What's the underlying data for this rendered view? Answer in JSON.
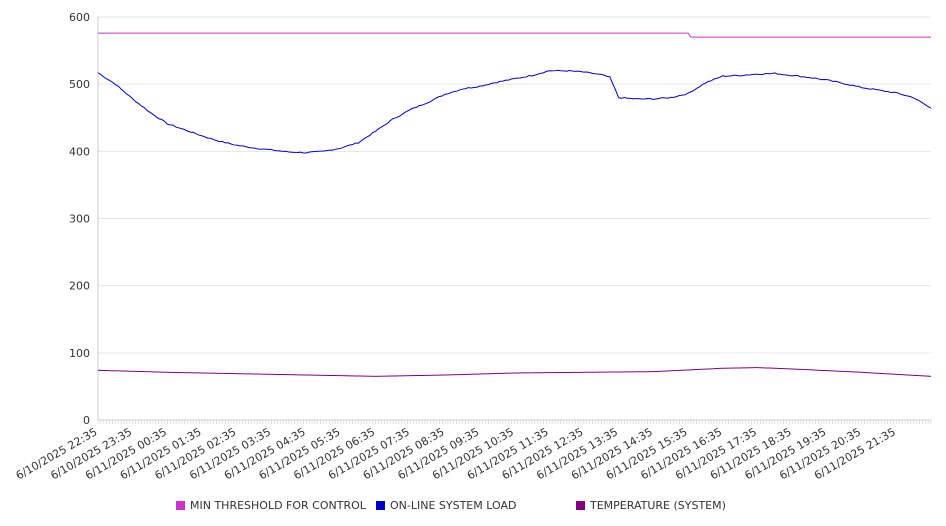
{
  "chart_data": {
    "type": "line",
    "title": "",
    "xlabel": "",
    "ylabel": "",
    "ylim": [
      0,
      600
    ],
    "yticks": [
      0,
      100,
      200,
      300,
      400,
      500,
      600
    ],
    "xlim": [
      "6/10/2025 22:35",
      "6/11/2025 22:35"
    ],
    "xticks": [
      "6/10/2025 22:35",
      "6/10/2025 23:35",
      "6/11/2025 00:35",
      "6/11/2025 01:35",
      "6/11/2025 02:35",
      "6/11/2025 03:35",
      "6/11/2025 04:35",
      "6/11/2025 05:35",
      "6/11/2025 06:35",
      "6/11/2025 07:35",
      "6/11/2025 08:35",
      "6/11/2025 09:35",
      "6/11/2025 10:35",
      "6/11/2025 11:35",
      "6/11/2025 12:35",
      "6/11/2025 13:35",
      "6/11/2025 14:35",
      "6/11/2025 15:35",
      "6/11/2025 16:35",
      "6/11/2025 17:35",
      "6/11/2025 18:35",
      "6/11/2025 19:35",
      "6/11/2025 20:35",
      "6/11/2025 21:35"
    ],
    "grid": "horizontal",
    "legend_position": "bottom",
    "series": [
      {
        "name": "MIN THRESHOLD FOR CONTROL",
        "color": "#cc33cc",
        "x": [
          "6/10/2025 22:35",
          "6/11/2025 15:35",
          "6/11/2025 15:40",
          "6/11/2025 22:35"
        ],
        "values": [
          576,
          576,
          570,
          570
        ]
      },
      {
        "name": "ON-LINE SYSTEM LOAD",
        "color": "#0000cc",
        "x": [
          "6/10/2025 22:35",
          "6/10/2025 23:05",
          "6/10/2025 23:35",
          "6/11/2025 00:05",
          "6/11/2025 00:35",
          "6/11/2025 01:05",
          "6/11/2025 01:35",
          "6/11/2025 02:05",
          "6/11/2025 02:35",
          "6/11/2025 03:05",
          "6/11/2025 03:35",
          "6/11/2025 04:05",
          "6/11/2025 04:35",
          "6/11/2025 05:05",
          "6/11/2025 05:35",
          "6/11/2025 06:05",
          "6/11/2025 06:35",
          "6/11/2025 07:05",
          "6/11/2025 07:35",
          "6/11/2025 08:05",
          "6/11/2025 08:35",
          "6/11/2025 09:05",
          "6/11/2025 09:35",
          "6/11/2025 10:05",
          "6/11/2025 10:35",
          "6/11/2025 11:05",
          "6/11/2025 11:35",
          "6/11/2025 12:05",
          "6/11/2025 12:35",
          "6/11/2025 13:05",
          "6/11/2025 13:20",
          "6/11/2025 13:35",
          "6/11/2025 14:05",
          "6/11/2025 14:35",
          "6/11/2025 15:05",
          "6/11/2025 15:35",
          "6/11/2025 16:05",
          "6/11/2025 16:35",
          "6/11/2025 17:05",
          "6/11/2025 17:35",
          "6/11/2025 18:05",
          "6/11/2025 18:35",
          "6/11/2025 19:05",
          "6/11/2025 19:35",
          "6/11/2025 20:05",
          "6/11/2025 20:35",
          "6/11/2025 21:05",
          "6/11/2025 21:35",
          "6/11/2025 22:05",
          "6/11/2025 22:35"
        ],
        "values": [
          517,
          500,
          478,
          458,
          441,
          432,
          423,
          415,
          409,
          405,
          402,
          399,
          398,
          400,
          405,
          413,
          430,
          448,
          462,
          473,
          485,
          493,
          497,
          503,
          508,
          513,
          520,
          520,
          518,
          514,
          510,
          480,
          478,
          478,
          480,
          486,
          502,
          512,
          513,
          515,
          516,
          513,
          510,
          506,
          501,
          495,
          491,
          487,
          480,
          464
        ]
      },
      {
        "name": "TEMPERATURE (SYSTEM)",
        "color": "#800080",
        "x": [
          "6/10/2025 22:35",
          "6/11/2025 00:35",
          "6/11/2025 02:35",
          "6/11/2025 04:35",
          "6/11/2025 06:35",
          "6/11/2025 08:35",
          "6/11/2025 10:35",
          "6/11/2025 12:35",
          "6/11/2025 14:35",
          "6/11/2025 16:35",
          "6/11/2025 17:35",
          "6/11/2025 18:35",
          "6/11/2025 20:35",
          "6/11/2025 22:35"
        ],
        "values": [
          74,
          71,
          69,
          67,
          65,
          67,
          70,
          71,
          72,
          77,
          78,
          76,
          71,
          65
        ]
      }
    ]
  }
}
